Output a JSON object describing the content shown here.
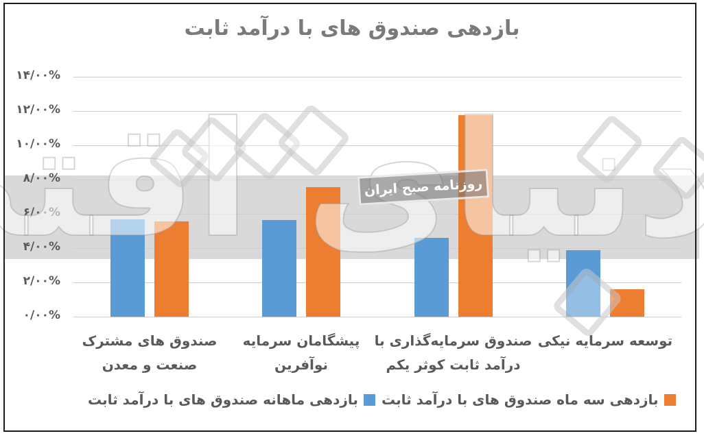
{
  "title": "بازدهی صندوق های با درآمد ثابت",
  "watermark": {
    "brand": "دنیای اقتصاد",
    "stamp": "روزنامه صبح ایران"
  },
  "legend": {
    "monthly_label": "بازدهی ماهانه صندوق های با درآمد ثابت",
    "three_month_label": "بازدهی سه ماه صندوق های با درآمد ثابت"
  },
  "colors": {
    "blue": "#5B9BD5",
    "orange": "#ED7D31",
    "gridline": "#D9D9D9",
    "band": "#D9D9D9",
    "label_text": "#595959",
    "title_text": "#7A7A7A"
  },
  "y_axis": {
    "tick_labels": [
      "۱۴/۰۰%",
      "۱۲/۰۰%",
      "۱۰/۰۰%",
      "۸/۰۰%",
      "۶/۰۰%",
      "۴/۰۰%",
      "۲/۰۰%",
      "۰/۰۰%"
    ],
    "tick_values": [
      14,
      12,
      10,
      8,
      6,
      4,
      2,
      0
    ]
  },
  "categories": [
    {
      "lines": [
        "صندوق های مشترک",
        "صنعت و معدن"
      ]
    },
    {
      "lines": [
        "پیشگامان سرمایه نوآفرین"
      ]
    },
    {
      "lines": [
        "صندوق سرمایه‌گذاری با",
        "درآمد ثابت کوثر یکم"
      ]
    },
    {
      "lines": [
        "توسعه سرمایه نیکی"
      ]
    }
  ],
  "chart_data": {
    "type": "bar",
    "title": "بازدهی صندوق های با درآمد ثابت",
    "categories": [
      "صندوق های مشترک صنعت و معدن",
      "پیشگامان سرمایه نوآفرین",
      "صندوق سرمایه‌گذاری با درآمد ثابت کوثر یکم",
      "توسعه سرمایه نیکی"
    ],
    "series": [
      {
        "name": "بازدهی ماهانه صندوق های با درآمد ثابت",
        "color": "#5B9BD5",
        "values": [
          5.7,
          5.65,
          4.6,
          3.9
        ]
      },
      {
        "name": "بازدهی سه ماه صندوق های با درآمد ثابت",
        "color": "#ED7D31",
        "values": [
          5.55,
          7.55,
          11.75,
          1.6
        ]
      }
    ],
    "ylim": [
      0,
      14
    ],
    "y_tick_step": 2,
    "y_format": "percent",
    "grid": "horizontal",
    "legend_position": "bottom"
  }
}
